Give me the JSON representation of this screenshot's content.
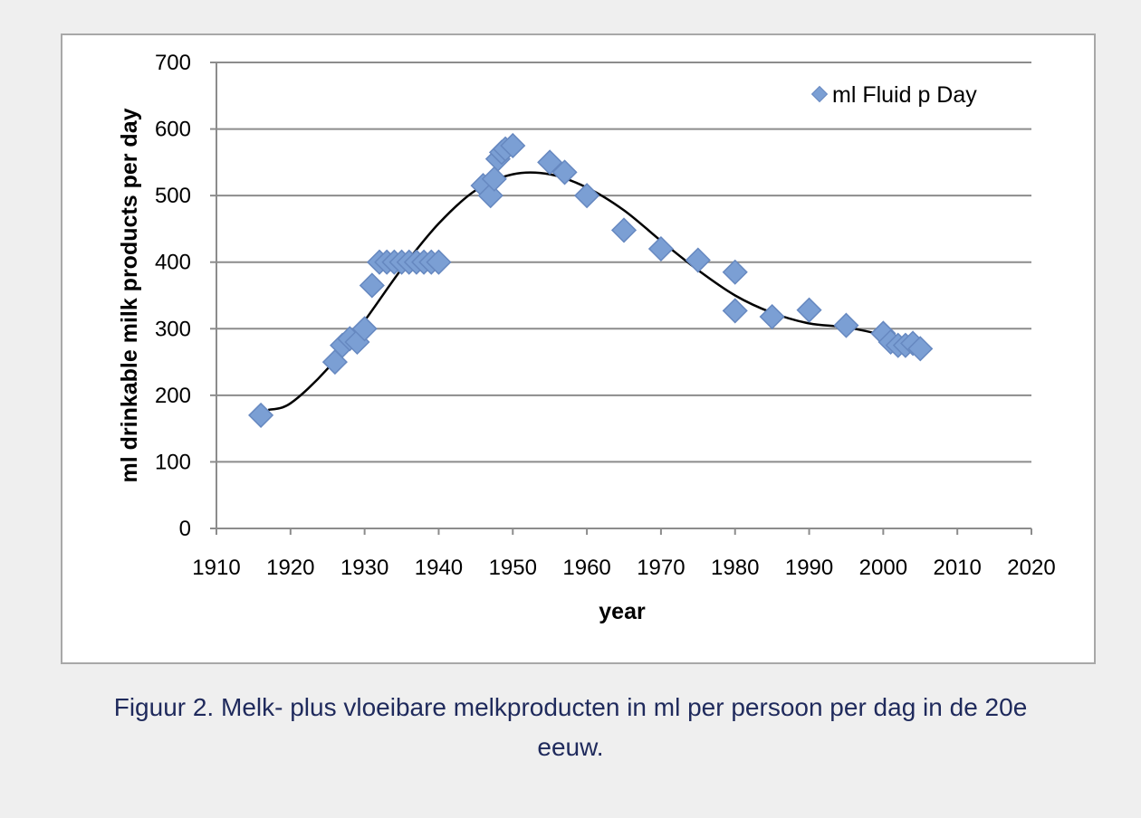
{
  "chart_data": {
    "type": "scatter",
    "xlabel": "year",
    "ylabel": "ml drinkable milk products per day",
    "xlim": [
      1910,
      2020
    ],
    "ylim": [
      0,
      700
    ],
    "x_ticks": [
      "1910",
      "1920",
      "1930",
      "1940",
      "1950",
      "1960",
      "1970",
      "1980",
      "1990",
      "2000",
      "2010",
      "2020"
    ],
    "y_ticks": [
      "0",
      "100",
      "200",
      "300",
      "400",
      "500",
      "600",
      "700"
    ],
    "grid": "horizontal",
    "legend": {
      "placement": "top-right",
      "label": "ml Fluid p Day"
    },
    "marker_color": "#7b9fd4",
    "marker_edge_color": "#6688c0",
    "trend_line_color": "#000000",
    "series": [
      {
        "name": "ml Fluid p Day",
        "x": [
          1916,
          1926,
          1927,
          1928,
          1929,
          1930,
          1931,
          1932,
          1933,
          1934,
          1935,
          1936,
          1937,
          1938,
          1939,
          1940,
          1946,
          1947,
          1947.5,
          1948,
          1948.5,
          1949,
          1950,
          1955,
          1957,
          1960,
          1965,
          1970,
          1975,
          1980,
          1980,
          1985,
          1990,
          1995,
          2000,
          2001,
          2002,
          2003,
          2004,
          2005
        ],
        "y": [
          170,
          250,
          275,
          285,
          280,
          300,
          365,
          400,
          400,
          400,
          400,
          400,
          400,
          400,
          400,
          400,
          515,
          500,
          525,
          555,
          565,
          570,
          575,
          550,
          535,
          500,
          448,
          420,
          403,
          385,
          327,
          318,
          328,
          305,
          293,
          280,
          275,
          275,
          278,
          270
        ]
      }
    ],
    "trend_line": {
      "x": [
        1917,
        1920,
        1925,
        1930,
        1935,
        1940,
        1945,
        1950,
        1955,
        1960,
        1965,
        1970,
        1975,
        1980,
        1985,
        1990,
        1995,
        2000,
        2005
      ],
      "y": [
        178,
        188,
        240,
        312,
        390,
        458,
        508,
        532,
        532,
        512,
        478,
        432,
        388,
        350,
        324,
        308,
        302,
        290,
        270
      ]
    }
  },
  "caption": {
    "line1": "Figuur 2. Melk- plus vloeibare melkproducten in ml per persoon per dag in de 20e",
    "line2": "eeuw."
  }
}
